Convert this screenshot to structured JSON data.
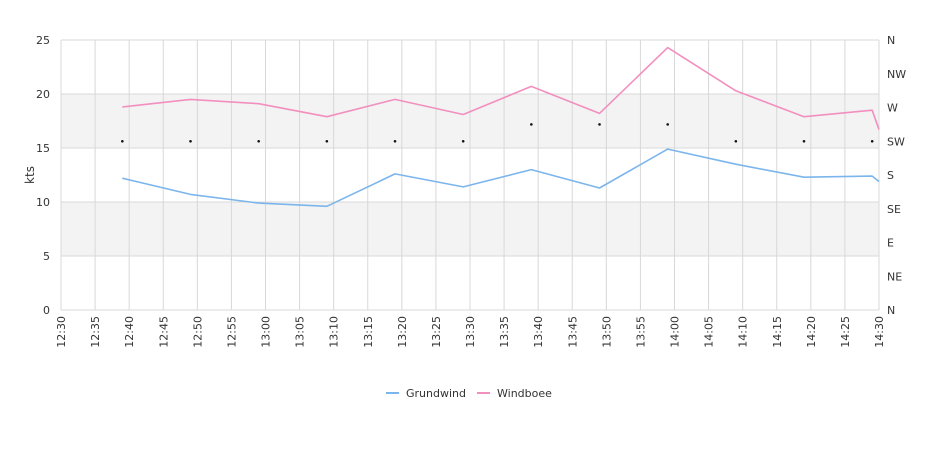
{
  "chart_data": {
    "type": "line",
    "ylabel": "kts",
    "ylim": [
      0,
      25
    ],
    "y_ticks": [
      "0",
      "5",
      "10",
      "15",
      "20",
      "25"
    ],
    "x_range": [
      "12:30",
      "14:30"
    ],
    "x_ticks": [
      "12:30",
      "12:35",
      "12:40",
      "12:45",
      "12:50",
      "12:55",
      "13:00",
      "13:05",
      "13:10",
      "13:15",
      "13:20",
      "13:25",
      "13:30",
      "13:35",
      "13:40",
      "13:45",
      "13:50",
      "13:55",
      "14:00",
      "14:05",
      "14:10",
      "14:15",
      "14:20",
      "14:25",
      "14:30"
    ],
    "direction_axis": [
      "N",
      "NE",
      "E",
      "SE",
      "S",
      "SW",
      "W",
      "NW",
      "N"
    ],
    "grid": true,
    "legend_position": "bottom-center",
    "series": [
      {
        "name": "Grundwind",
        "color": "#7cb5ec",
        "points": [
          [
            "12:39",
            12.2
          ],
          [
            "12:49",
            10.7
          ],
          [
            "12:59",
            9.9
          ],
          [
            "13:09",
            9.6
          ],
          [
            "13:19",
            12.6
          ],
          [
            "13:29",
            11.4
          ],
          [
            "13:39",
            13.0
          ],
          [
            "13:49",
            11.3
          ],
          [
            "13:59",
            14.9
          ],
          [
            "14:09",
            13.5
          ],
          [
            "14:19",
            12.3
          ],
          [
            "14:29",
            12.4
          ],
          [
            "14:30",
            11.9
          ]
        ]
      },
      {
        "name": "Windboee",
        "color": "#f28fbf",
        "points": [
          [
            "12:39",
            18.8
          ],
          [
            "12:49",
            19.5
          ],
          [
            "12:59",
            19.1
          ],
          [
            "13:09",
            17.9
          ],
          [
            "13:19",
            19.5
          ],
          [
            "13:29",
            18.1
          ],
          [
            "13:39",
            20.7
          ],
          [
            "13:49",
            18.2
          ],
          [
            "13:59",
            24.3
          ],
          [
            "14:09",
            20.3
          ],
          [
            "14:19",
            17.9
          ],
          [
            "14:29",
            18.5
          ],
          [
            "14:30",
            16.7
          ]
        ]
      }
    ],
    "direction_points": [
      [
        "12:39",
        "SW"
      ],
      [
        "12:49",
        "SW"
      ],
      [
        "12:59",
        "SW"
      ],
      [
        "13:09",
        "SW"
      ],
      [
        "13:19",
        "SW"
      ],
      [
        "13:29",
        "SW"
      ],
      [
        "13:39",
        "WSW"
      ],
      [
        "13:49",
        "WSW"
      ],
      [
        "13:59",
        "WSW"
      ],
      [
        "14:09",
        "SW"
      ],
      [
        "14:19",
        "SW"
      ],
      [
        "14:29",
        "SW"
      ]
    ]
  }
}
